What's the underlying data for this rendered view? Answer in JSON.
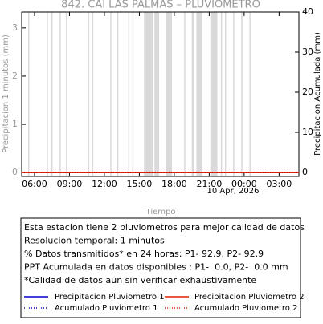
{
  "chart_data": {
    "type": "line",
    "title": "842. CAI LAS PALMAS – PLUVIOMETRO",
    "x_label": "Tiempo",
    "y_label": "Precipitacion 1 minutos (mm)",
    "y2_label": "Precipitacion Acumulada (mm)",
    "xlim": [
      4.9,
      28.7
    ],
    "xticks": [
      {
        "value": 6,
        "label": "06:00"
      },
      {
        "value": 9,
        "label": "09:00"
      },
      {
        "value": 12,
        "label": "12:00"
      },
      {
        "value": 15,
        "label": "15:00"
      },
      {
        "value": 18,
        "label": "18:00"
      },
      {
        "value": 21,
        "label": "21:00"
      },
      {
        "value": 24,
        "label": "00:00"
      },
      {
        "value": 27,
        "label": "03:00"
      }
    ],
    "annotations": [
      {
        "text": "10 Apr, 2026",
        "x": 24
      }
    ],
    "ylim": [
      -0.08,
      3.33
    ],
    "yticks": [
      0,
      1,
      2,
      3
    ],
    "y2lim": [
      -1,
      40
    ],
    "y2ticks": [
      0,
      10,
      20,
      30,
      40
    ],
    "gap_color": "#d9d9d9",
    "gaps": [
      [
        5.45,
        5.55
      ],
      [
        7.05,
        7.15
      ],
      [
        7.45,
        7.55
      ],
      [
        8.15,
        8.25
      ],
      [
        8.7,
        8.8
      ],
      [
        10.6,
        10.7
      ],
      [
        10.95,
        11.05
      ],
      [
        12.5,
        12.6
      ],
      [
        13.1,
        13.2
      ],
      [
        14.05,
        14.15
      ],
      [
        14.4,
        14.5
      ],
      [
        15.4,
        16.2
      ],
      [
        16.3,
        16.7
      ],
      [
        17.3,
        17.8
      ],
      [
        18.85,
        18.95
      ],
      [
        19.5,
        19.7
      ],
      [
        19.9,
        20.4
      ],
      [
        21.1,
        21.7
      ],
      [
        22.0,
        22.1
      ],
      [
        22.35,
        22.45
      ],
      [
        23.05,
        23.15
      ],
      [
        23.75,
        23.85
      ],
      [
        24.45,
        24.55
      ]
    ],
    "x": [
      4.9,
      28.7
    ],
    "series": [
      {
        "name": "Precipitacion Pluviometro 1",
        "color": "#0000cc",
        "dash": "solid",
        "values": [
          0,
          0
        ]
      },
      {
        "name": "Precipitacion Pluviometro 2",
        "color": "#dd2200",
        "dash": "solid",
        "values": [
          0,
          0
        ]
      },
      {
        "name": "Acumulado Pluviometro 1",
        "color": "#0000cc",
        "dash": "dotted",
        "axis": "y2",
        "values": [
          0,
          0
        ]
      },
      {
        "name": "Acumulado Pluviometro 2",
        "color": "#dd2200",
        "dash": "dotted",
        "axis": "y2",
        "values": [
          0,
          0
        ]
      }
    ],
    "notes": [
      "Esta estacion tiene 2 pluviometros para mejor calidad de datos",
      "Resolucion temporal: 1 minutos",
      "% Datos transmitidos* en 24 horas: P1- 92.9, P2- 92.9",
      "PPT Acumulada en datos disponibles : P1-  0.0, P2-  0.0 mm",
      "*Calidad de datos aun sin verificar exhaustivamente"
    ]
  }
}
